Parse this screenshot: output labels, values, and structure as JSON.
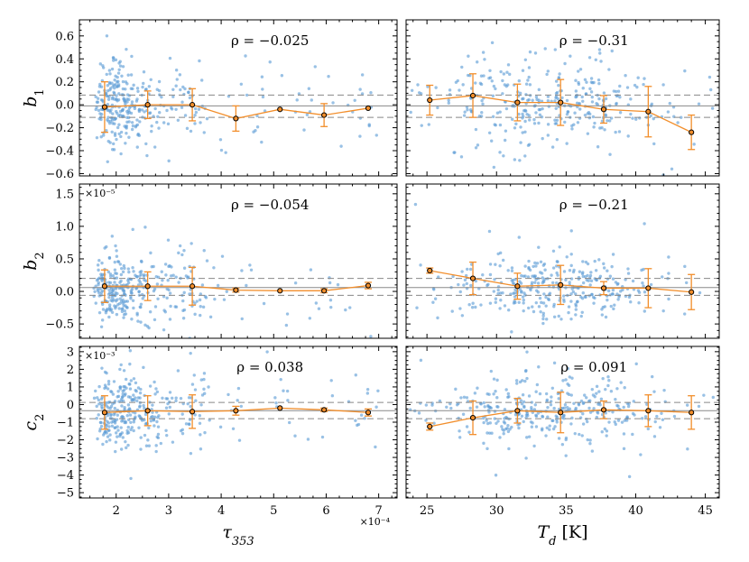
{
  "chart_data": {
    "type": "scatter",
    "layout": "3 rows x 2 columns, shared x per column, shared y per row",
    "x_axes": [
      {
        "label": "τ353",
        "label_main": "τ",
        "label_sub": "353",
        "range": [
          1.3,
          7.35
        ],
        "ticks": [
          2,
          3,
          4,
          5,
          6,
          7
        ],
        "multiplier": "×10⁻⁴"
      },
      {
        "label": "Td [K]",
        "label_main": "T",
        "label_sub": "d",
        "label_unit": " [K]",
        "range": [
          23.5,
          46.0
        ],
        "ticks": [
          25,
          30,
          35,
          40,
          45
        ],
        "multiplier": ""
      }
    ],
    "y_axes": [
      {
        "label": "b1",
        "label_main": "b",
        "label_sub": "1",
        "range": [
          -0.62,
          0.74
        ],
        "ticks": [
          -0.6,
          -0.4,
          -0.2,
          0.0,
          0.2,
          0.4,
          0.6
        ],
        "tick_labels": [
          "−0.6",
          "−0.4",
          "−0.2",
          "0.0",
          "0.2",
          "0.4",
          "0.6"
        ],
        "multiplier": "",
        "mean_line": -0.01,
        "sigma_lines": [
          -0.11,
          0.085
        ]
      },
      {
        "label": "b2",
        "label_main": "b",
        "label_sub": "2",
        "range": [
          -0.72,
          1.65
        ],
        "ticks": [
          -0.5,
          0.0,
          0.5,
          1.0,
          1.5
        ],
        "tick_labels": [
          "−0.5",
          "0.0",
          "0.5",
          "1.0",
          "1.5"
        ],
        "multiplier": "×10⁻⁵",
        "mean_line": 0.06,
        "sigma_lines": [
          -0.06,
          0.2
        ]
      },
      {
        "label": "c2",
        "label_main": "c",
        "label_sub": "2",
        "range": [
          -5.3,
          3.3
        ],
        "ticks": [
          -5,
          -4,
          -3,
          -2,
          -1,
          0,
          1,
          2,
          3
        ],
        "tick_labels": [
          "−5",
          "−4",
          "−3",
          "−2",
          "−1",
          "0",
          "1",
          "2",
          "3"
        ],
        "multiplier": "×10⁻³",
        "mean_line": -0.35,
        "sigma_lines": [
          -0.8,
          0.12
        ]
      }
    ],
    "panels": [
      {
        "row": 0,
        "col": 0,
        "rho": "ρ = −0.025",
        "binned": [
          {
            "x": 1.78,
            "y": -0.02,
            "err": 0.22
          },
          {
            "x": 2.6,
            "y": 0.0,
            "err": 0.12
          },
          {
            "x": 3.45,
            "y": 0.0,
            "err": 0.14
          },
          {
            "x": 4.28,
            "y": -0.12,
            "err": 0.11
          },
          {
            "x": 5.12,
            "y": -0.04,
            "err": 0.0
          },
          {
            "x": 5.96,
            "y": -0.09,
            "err": 0.1
          },
          {
            "x": 6.8,
            "y": -0.03,
            "err": 0.0
          }
        ],
        "scatter": {
          "seed": 11,
          "n": 330,
          "mean": 0.0,
          "sd": 0.19
        }
      },
      {
        "row": 0,
        "col": 1,
        "rho": "ρ = −0.31",
        "binned": [
          {
            "x": 25.2,
            "y": 0.04,
            "err": 0.13
          },
          {
            "x": 28.3,
            "y": 0.08,
            "err": 0.19
          },
          {
            "x": 31.5,
            "y": 0.02,
            "err": 0.16
          },
          {
            "x": 34.6,
            "y": 0.02,
            "err": 0.2
          },
          {
            "x": 37.7,
            "y": -0.04,
            "err": 0.12
          },
          {
            "x": 40.9,
            "y": -0.06,
            "err": 0.22
          },
          {
            "x": 44.0,
            "y": -0.24,
            "err": 0.15
          }
        ],
        "scatter": {
          "seed": 23,
          "n": 330,
          "mean": 0.0,
          "sd": 0.19
        }
      },
      {
        "row": 1,
        "col": 0,
        "rho": "ρ = −0.054",
        "binned": [
          {
            "x": 1.78,
            "y": 0.08,
            "err": 0.25
          },
          {
            "x": 2.6,
            "y": 0.08,
            "err": 0.22
          },
          {
            "x": 3.45,
            "y": 0.08,
            "err": 0.29
          },
          {
            "x": 4.28,
            "y": 0.02,
            "err": 0.03
          },
          {
            "x": 5.12,
            "y": 0.01,
            "err": 0.0
          },
          {
            "x": 5.96,
            "y": 0.01,
            "err": 0.03
          },
          {
            "x": 6.8,
            "y": 0.09,
            "err": 0.05
          }
        ],
        "scatter": {
          "seed": 37,
          "n": 330,
          "mean": 0.07,
          "sd": 0.26
        }
      },
      {
        "row": 1,
        "col": 1,
        "rho": "ρ = −0.21",
        "binned": [
          {
            "x": 25.2,
            "y": 0.32,
            "err": 0.04
          },
          {
            "x": 28.3,
            "y": 0.2,
            "err": 0.25
          },
          {
            "x": 31.5,
            "y": 0.08,
            "err": 0.2
          },
          {
            "x": 34.6,
            "y": 0.1,
            "err": 0.3
          },
          {
            "x": 37.7,
            "y": 0.05,
            "err": 0.1
          },
          {
            "x": 40.9,
            "y": 0.05,
            "err": 0.3
          },
          {
            "x": 44.0,
            "y": -0.01,
            "err": 0.27
          }
        ],
        "scatter": {
          "seed": 41,
          "n": 330,
          "mean": 0.07,
          "sd": 0.26
        }
      },
      {
        "row": 2,
        "col": 0,
        "rho": "ρ = 0.038",
        "binned": [
          {
            "x": 1.78,
            "y": -0.45,
            "err": 0.95
          },
          {
            "x": 2.6,
            "y": -0.35,
            "err": 0.85
          },
          {
            "x": 3.45,
            "y": -0.4,
            "err": 0.95
          },
          {
            "x": 4.28,
            "y": -0.35,
            "err": 0.25
          },
          {
            "x": 5.12,
            "y": -0.2,
            "err": 0.0
          },
          {
            "x": 5.96,
            "y": -0.3,
            "err": 0.1
          },
          {
            "x": 6.8,
            "y": -0.45,
            "err": 0.2
          }
        ],
        "scatter": {
          "seed": 53,
          "n": 330,
          "mean": -0.35,
          "sd": 1.0
        }
      },
      {
        "row": 2,
        "col": 1,
        "rho": "ρ = 0.091",
        "binned": [
          {
            "x": 25.2,
            "y": -1.25,
            "err": 0.2
          },
          {
            "x": 28.3,
            "y": -0.75,
            "err": 0.95
          },
          {
            "x": 31.5,
            "y": -0.35,
            "err": 0.7
          },
          {
            "x": 34.6,
            "y": -0.45,
            "err": 1.15
          },
          {
            "x": 37.7,
            "y": -0.3,
            "err": 0.5
          },
          {
            "x": 40.9,
            "y": -0.35,
            "err": 0.9
          },
          {
            "x": 44.0,
            "y": -0.45,
            "err": 0.95
          }
        ],
        "scatter": {
          "seed": 67,
          "n": 330,
          "mean": -0.35,
          "sd": 1.0
        }
      }
    ],
    "colors": {
      "scatter": "#5b9bd5",
      "binned_line": "#f28e2b",
      "binned_marker_edge": "#000000",
      "mean_line": "#888888",
      "sigma_lines": "#888888",
      "frame": "#000000"
    }
  }
}
